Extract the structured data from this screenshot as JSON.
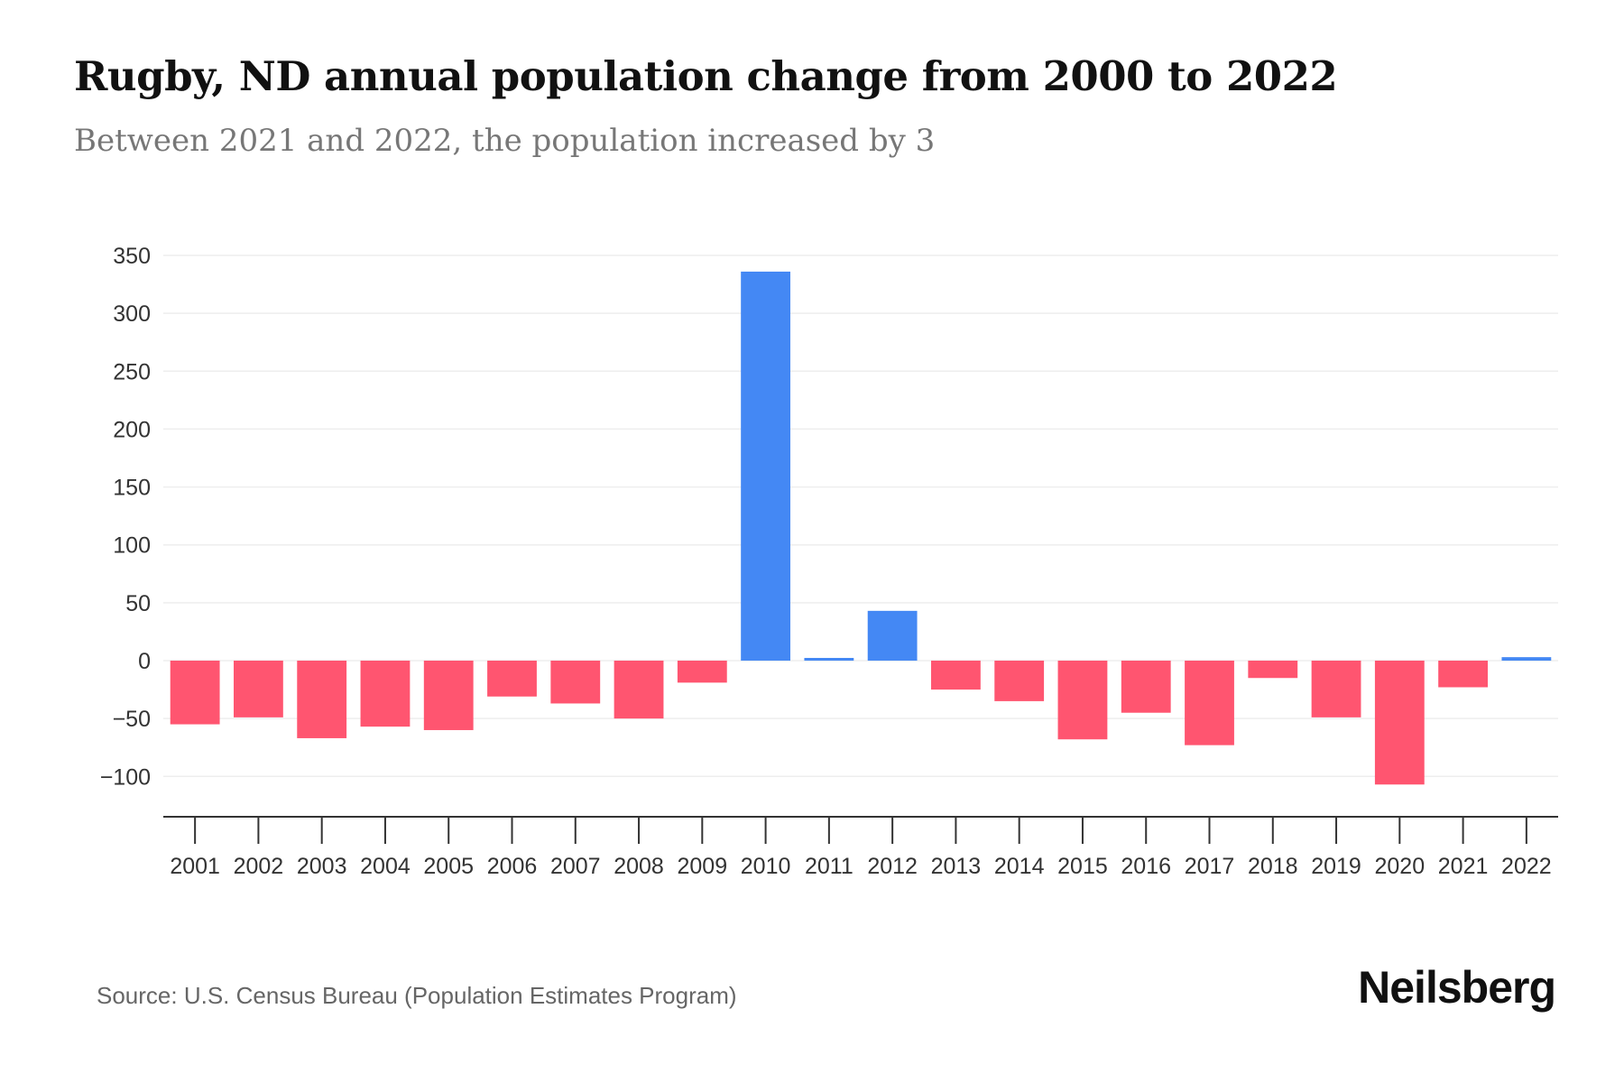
{
  "title": "Rugby, ND annual population change from 2000 to 2022",
  "subtitle": "Between 2021 and 2022, the population increased by 3",
  "source": "Source: U.S. Census Bureau (Population Estimates Program)",
  "logo": "Neilsberg",
  "colors": {
    "positive": "#4488f4",
    "negative": "#ff5570",
    "grid": "#eeeeee",
    "axis": "#333333"
  },
  "chart_data": {
    "type": "bar",
    "title": "Rugby, ND annual population change from 2000 to 2022",
    "xlabel": "",
    "ylabel": "",
    "ylim": [
      -130,
      350
    ],
    "yticks": [
      350,
      300,
      250,
      200,
      150,
      100,
      50,
      0,
      -50,
      -100
    ],
    "ytick_labels": [
      "350",
      "300",
      "250",
      "200",
      "150",
      "100",
      "50",
      "0",
      "−50",
      "−100"
    ],
    "grid": true,
    "categories": [
      "2001",
      "2002",
      "2003",
      "2004",
      "2005",
      "2006",
      "2007",
      "2008",
      "2009",
      "2010",
      "2011",
      "2012",
      "2013",
      "2014",
      "2015",
      "2016",
      "2017",
      "2018",
      "2019",
      "2020",
      "2021",
      "2022"
    ],
    "values": [
      -55,
      -49,
      -67,
      -57,
      -60,
      -31,
      -37,
      -50,
      -19,
      336,
      2,
      43,
      -25,
      -35,
      -68,
      -45,
      -73,
      -15,
      -49,
      -107,
      -23,
      3
    ]
  }
}
